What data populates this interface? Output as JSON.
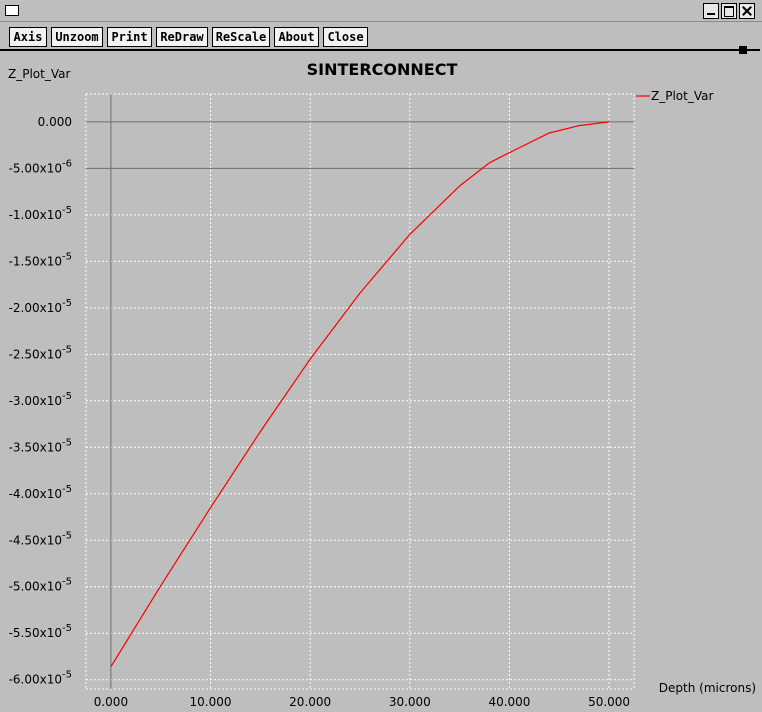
{
  "toolbar": {
    "buttons": [
      "Axis",
      "Unzoom",
      "Print",
      "ReDraw",
      "ReScale",
      "About",
      "Close"
    ]
  },
  "colors": {
    "background": "#bebebe",
    "plot_area": "#bebebe",
    "series": "#ff0000",
    "grid": "#ffffff"
  },
  "chart_data": {
    "type": "line",
    "title": "SINTERCONNECT",
    "ylabel": "Z_Plot_Var",
    "xlabel": "Depth (microns)",
    "xlim": [
      -2.5,
      52.5
    ],
    "ylim": [
      -6.1e-05,
      3e-06
    ],
    "x_ticks": [
      0,
      10,
      20,
      30,
      40,
      50
    ],
    "x_tick_labels": [
      "0.000",
      "10.000",
      "20.000",
      "30.000",
      "40.000",
      "50.000"
    ],
    "y_ticks": [
      0,
      -5e-06,
      -1e-05,
      -1.5e-05,
      -2e-05,
      -2.5e-05,
      -3e-05,
      -3.5e-05,
      -4e-05,
      -4.5e-05,
      -5e-05,
      -5.5e-05,
      -6e-05
    ],
    "y_tick_labels": [
      {
        "base": "0.000",
        "exp": ""
      },
      {
        "base": "-5.00x10",
        "exp": "-6"
      },
      {
        "base": "-1.00x10",
        "exp": "-5"
      },
      {
        "base": "-1.50x10",
        "exp": "-5"
      },
      {
        "base": "-2.00x10",
        "exp": "-5"
      },
      {
        "base": "-2.50x10",
        "exp": "-5"
      },
      {
        "base": "-3.00x10",
        "exp": "-5"
      },
      {
        "base": "-3.50x10",
        "exp": "-5"
      },
      {
        "base": "-4.00x10",
        "exp": "-5"
      },
      {
        "base": "-4.50x10",
        "exp": "-5"
      },
      {
        "base": "-5.00x10",
        "exp": "-5"
      },
      {
        "base": "-5.50x10",
        "exp": "-5"
      },
      {
        "base": "-6.00x10",
        "exp": "-5"
      }
    ],
    "grid": true,
    "legend": "right",
    "series": [
      {
        "name": "Z_Plot_Var",
        "color": "#ff0000",
        "x": [
          0,
          5,
          10,
          15,
          20,
          25,
          30,
          35,
          38,
          40,
          44,
          47,
          50
        ],
        "y": [
          -5.86e-05,
          -4.99e-05,
          -4.15e-05,
          -3.33e-05,
          -2.55e-05,
          -1.84e-05,
          -1.21e-05,
          -6.9e-06,
          -4.4e-06,
          -3.3e-06,
          -1.2e-06,
          -4e-07,
          0
        ]
      }
    ]
  }
}
